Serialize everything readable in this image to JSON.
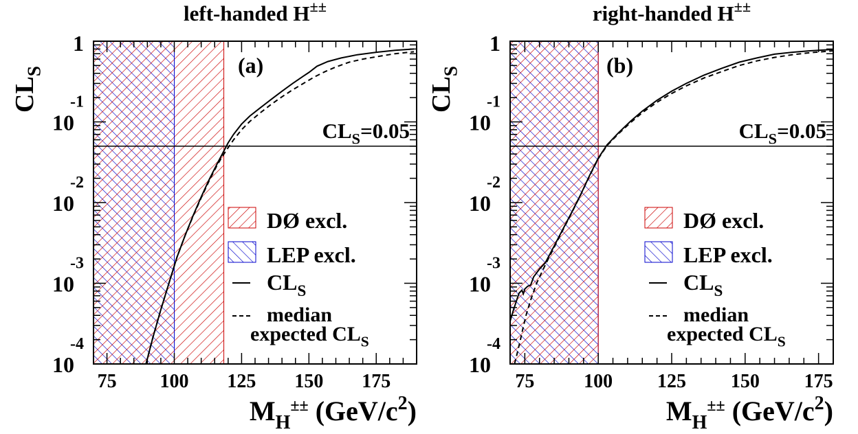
{
  "chart_data": [
    {
      "type": "line",
      "panel_label": "(a)",
      "title": "left-handed H",
      "title_superscript": "±±",
      "ylabel": "CL",
      "ylabel_sub": "S",
      "xlabel": "M",
      "xlabel_sub": "H",
      "xlabel_sub_sup": "±±",
      "xlabel_units": "(GeV/c",
      "xlabel_units_sup": "2",
      "xlabel_units_close": ")",
      "xlim": [
        70,
        190
      ],
      "ylim": [
        0.0001,
        1
      ],
      "y_scale": "log",
      "x_ticks": [
        75,
        100,
        125,
        150,
        175
      ],
      "x_tick_labels": [
        "75",
        "100",
        "125",
        "150",
        "175"
      ],
      "y_ticks": [
        {
          "value": 1,
          "base": "1",
          "exp": ""
        },
        {
          "value": 0.1,
          "base": "10",
          "exp": "-1"
        },
        {
          "value": 0.01,
          "base": "10",
          "exp": "-2"
        },
        {
          "value": 0.001,
          "base": "10",
          "exp": "-3"
        },
        {
          "value": 0.0001,
          "base": "10",
          "exp": "-4"
        }
      ],
      "threshold": {
        "value": 0.05,
        "label": "CL",
        "label_sub": "S",
        "label_tail": "=0.05"
      },
      "regions": [
        {
          "name": "LEP excl.",
          "x": [
            70,
            100
          ],
          "color": "#0000cc",
          "pattern": "lep"
        },
        {
          "name": "DØ excl.",
          "x": [
            70,
            118.4
          ],
          "color": "#cc0000",
          "pattern": "d0"
        }
      ],
      "series": [
        {
          "name": "CL",
          "name_sub": "S",
          "style": "solid",
          "x": [
            89.5,
            92,
            95,
            98,
            101,
            104,
            107,
            110,
            113,
            116,
            118,
            120,
            122,
            125,
            128,
            132,
            136,
            140,
            144,
            148,
            150,
            153,
            157,
            162,
            168,
            175,
            182,
            189
          ],
          "y": [
            0.0001,
            0.00021,
            0.00047,
            0.001,
            0.0021,
            0.0039,
            0.0069,
            0.0118,
            0.0194,
            0.0307,
            0.041,
            0.055,
            0.07,
            0.094,
            0.118,
            0.15,
            0.19,
            0.24,
            0.3,
            0.37,
            0.41,
            0.49,
            0.56,
            0.62,
            0.68,
            0.73,
            0.77,
            0.8
          ]
        },
        {
          "name": "median",
          "name_line2": "expected CL",
          "name_line2_sub": "S",
          "style": "dashed",
          "x": [
            89.5,
            92,
            95,
            98,
            101,
            104,
            107,
            110,
            113,
            116,
            118,
            120,
            122,
            125,
            128,
            132,
            136,
            140,
            144,
            148,
            152,
            156,
            160,
            165,
            170,
            176,
            182,
            189
          ],
          "y": [
            0.0001,
            0.00021,
            0.00047,
            0.001,
            0.0021,
            0.0039,
            0.0068,
            0.0115,
            0.0188,
            0.0295,
            0.038,
            0.048,
            0.06,
            0.08,
            0.101,
            0.13,
            0.165,
            0.205,
            0.25,
            0.3,
            0.36,
            0.42,
            0.48,
            0.55,
            0.6,
            0.65,
            0.7,
            0.74
          ]
        }
      ],
      "legend": {
        "placement": "lower-right"
      }
    },
    {
      "type": "line",
      "panel_label": "(b)",
      "title": "right-handed H",
      "title_superscript": "±±",
      "ylabel": "CL",
      "ylabel_sub": "S",
      "xlabel": "M",
      "xlabel_sub": "H",
      "xlabel_sub_sup": "±±",
      "xlabel_units": "(GeV/c",
      "xlabel_units_sup": "2",
      "xlabel_units_close": ")",
      "xlim": [
        70,
        180
      ],
      "ylim": [
        0.0001,
        1
      ],
      "y_scale": "log",
      "x_ticks": [
        75,
        100,
        125,
        150,
        175
      ],
      "x_tick_labels": [
        "75",
        "100",
        "125",
        "150",
        "175"
      ],
      "y_ticks": [
        {
          "value": 1,
          "base": "1",
          "exp": ""
        },
        {
          "value": 0.1,
          "base": "10",
          "exp": "-1"
        },
        {
          "value": 0.01,
          "base": "10",
          "exp": "-2"
        },
        {
          "value": 0.001,
          "base": "10",
          "exp": "-3"
        },
        {
          "value": 0.0001,
          "base": "10",
          "exp": "-4"
        }
      ],
      "threshold": {
        "value": 0.05,
        "label": "CL",
        "label_sub": "S",
        "label_tail": "=0.05"
      },
      "regions": [
        {
          "name": "LEP excl.",
          "x": [
            70,
            100
          ],
          "color": "#0000cc",
          "pattern": "lep"
        },
        {
          "name": "DØ excl.",
          "x": [
            70,
            100
          ],
          "color": "#cc0000",
          "pattern": "d0"
        }
      ],
      "series": [
        {
          "name": "CL",
          "name_sub": "S",
          "style": "solid",
          "x": [
            70,
            71,
            72,
            73,
            74,
            74.5,
            75,
            76,
            77,
            78,
            80,
            82,
            85,
            88,
            91,
            94,
            97,
            100,
            103,
            107,
            111,
            115,
            120,
            125,
            130,
            136,
            142,
            148,
            154,
            160,
            166,
            172,
            180
          ],
          "y": [
            0.00034,
            0.00045,
            0.00058,
            0.00075,
            0.00082,
            0.00074,
            0.00085,
            0.00092,
            0.00095,
            0.0012,
            0.0015,
            0.0018,
            0.0029,
            0.0047,
            0.0076,
            0.0125,
            0.0215,
            0.0355,
            0.052,
            0.074,
            0.102,
            0.136,
            0.185,
            0.24,
            0.3,
            0.38,
            0.46,
            0.55,
            0.62,
            0.69,
            0.73,
            0.76,
            0.79
          ]
        },
        {
          "name": "median",
          "name_line2": "expected CL",
          "name_line2_sub": "S",
          "style": "dashed",
          "x": [
            71.5,
            72.5,
            73.5,
            74.5,
            75.5,
            77,
            79,
            82,
            85,
            88,
            91,
            94,
            97,
            100,
            103,
            107,
            111,
            115,
            120,
            125,
            130,
            136,
            142,
            148,
            154,
            160,
            166,
            172,
            180
          ],
          "y": [
            0.0001,
            0.00014,
            0.0002,
            0.00029,
            0.00041,
            0.00062,
            0.001,
            0.0017,
            0.0028,
            0.0046,
            0.0075,
            0.0124,
            0.0213,
            0.035,
            0.051,
            0.072,
            0.098,
            0.13,
            0.175,
            0.225,
            0.28,
            0.35,
            0.42,
            0.5,
            0.57,
            0.63,
            0.68,
            0.72,
            0.76
          ]
        }
      ],
      "legend": {
        "placement": "lower-right"
      }
    }
  ]
}
